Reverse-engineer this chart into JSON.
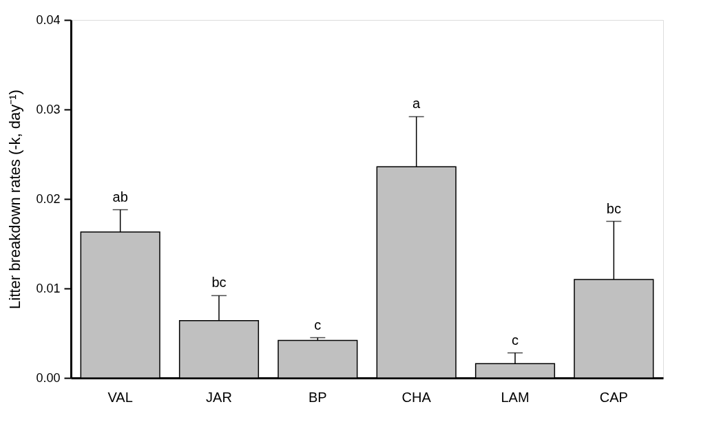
{
  "chart_data": {
    "type": "bar",
    "ylabel": "Litter breakdown rates (-k, day⁻¹)",
    "categories": [
      "VAL",
      "JAR",
      "BP",
      "CHA",
      "LAM",
      "CAP"
    ],
    "values": [
      0.0163,
      0.0064,
      0.0042,
      0.0236,
      0.0016,
      0.011
    ],
    "errors": [
      [
        0.0163,
        0.0188
      ],
      [
        0.0064,
        0.0092
      ],
      [
        0.0042,
        0.0045
      ],
      [
        0.0236,
        0.0292
      ],
      [
        0.0016,
        0.0028
      ],
      [
        0.011,
        0.0175
      ]
    ],
    "color": "#c0c0c0",
    "ylim": [
      0,
      0.04
    ],
    "yticks": [
      {
        "value": 0,
        "label": "0.00"
      },
      {
        "value": 0.01,
        "label": "0.01"
      },
      {
        "value": 0.02,
        "label": "0.02"
      },
      {
        "value": 0.03,
        "label": "0.03"
      },
      {
        "value": 0.04,
        "label": "0.04"
      }
    ],
    "grid": false,
    "annotations": [
      "ab",
      "bc",
      "c",
      "a",
      "c",
      "bc"
    ]
  }
}
